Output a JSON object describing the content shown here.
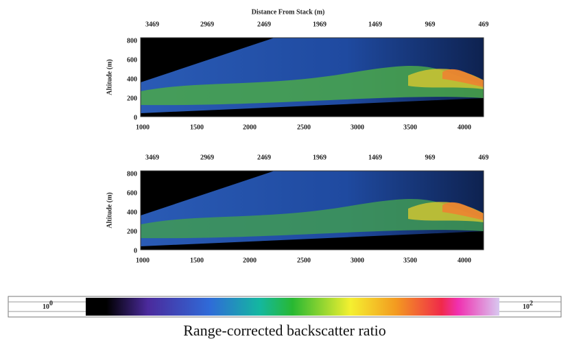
{
  "figure": {
    "top_axis_title": "Distance From Stack (m)",
    "panels": [
      {
        "y_label": "Altitude (m)",
        "top_ticks": [
          3469,
          2969,
          2469,
          1969,
          1469,
          969,
          469
        ],
        "bottom_ticks": [
          1000,
          1500,
          2000,
          2500,
          3000,
          3500,
          4000
        ],
        "y_ticks": [
          0,
          200,
          400,
          600,
          800
        ]
      },
      {
        "y_label": "Altitude (m)",
        "top_ticks": [
          3469,
          2969,
          2469,
          1969,
          1469,
          969,
          469
        ],
        "bottom_ticks": [
          1000,
          1500,
          2000,
          2500,
          3000,
          3500,
          4000
        ],
        "y_ticks": [
          0,
          200,
          400,
          600,
          800
        ]
      }
    ],
    "colorbar": {
      "min_label": {
        "base": "10",
        "exponent": "0"
      },
      "max_label": {
        "base": "10",
        "exponent": "2"
      },
      "title": "Range-corrected backscatter ratio"
    }
  }
}
